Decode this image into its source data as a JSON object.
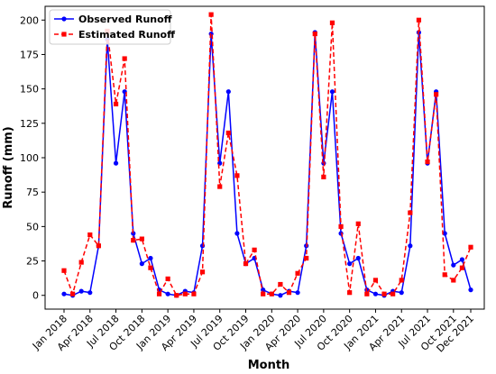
{
  "chart_data": {
    "type": "line",
    "xlabel": "Month",
    "ylabel": "Runoff (mm)",
    "ylim": [
      -10,
      210
    ],
    "yticks": [
      0,
      25,
      50,
      75,
      100,
      125,
      150,
      175,
      200
    ],
    "xtick_labels": [
      "Jan 2018",
      "Apr 2018",
      "Jul 2018",
      "Oct 2018",
      "Jan 2019",
      "Apr 2019",
      "Jul 2019",
      "Oct 2019",
      "Jan 2020",
      "Apr 2020",
      "Jul 2020",
      "Oct 2020",
      "Jan 2021",
      "Apr 2021",
      "Jul 2021",
      "Oct 2021",
      "Dec 2021"
    ],
    "xtick_index": [
      0,
      3,
      6,
      9,
      12,
      15,
      18,
      21,
      24,
      27,
      30,
      33,
      36,
      39,
      42,
      45,
      47
    ],
    "legend_position": "upper-left",
    "series": [
      {
        "name": "Observed Runoff",
        "color": "#0000ff",
        "linestyle": "solid",
        "marker": "circle",
        "values": [
          1,
          0,
          3,
          2,
          36,
          186,
          96,
          148,
          45,
          23,
          27,
          4,
          1,
          0,
          3,
          2,
          36,
          190,
          96,
          148,
          45,
          23,
          27,
          4,
          1,
          0,
          3,
          2,
          36,
          191,
          96,
          148,
          45,
          23,
          27,
          4,
          1,
          0,
          3,
          2,
          36,
          191,
          96,
          148,
          45,
          22,
          26,
          4
        ]
      },
      {
        "name": "Estimated Runoff",
        "color": "#ff0000",
        "linestyle": "dashed",
        "marker": "square",
        "values": [
          18,
          1,
          24,
          44,
          36,
          192,
          139,
          172,
          40,
          41,
          20,
          1,
          12,
          0,
          1,
          1,
          17,
          204,
          79,
          118,
          87,
          23,
          33,
          1,
          1,
          8,
          2,
          16,
          27,
          190,
          86,
          198,
          50,
          2,
          52,
          1,
          11,
          1,
          1,
          11,
          60,
          200,
          97,
          146,
          15,
          11,
          20,
          35
        ]
      }
    ]
  }
}
